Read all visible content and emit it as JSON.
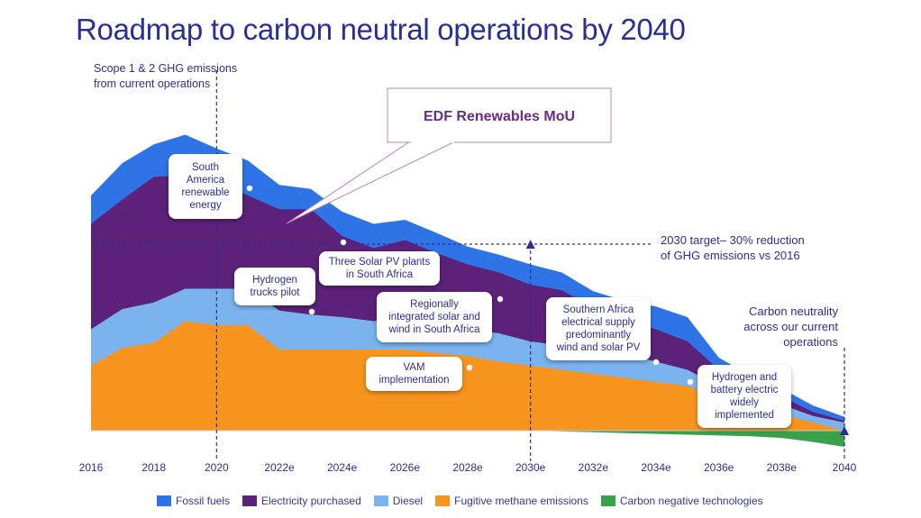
{
  "title": "Roadmap to carbon neutral operations by 2040",
  "chart_data": {
    "type": "area",
    "stacked": true,
    "ylabel": "Scope 1 & 2 GHG emissions\nfrom current operations",
    "x": [
      "2016",
      "2017",
      "2018",
      "2019",
      "2020",
      "2021",
      "2022",
      "2023",
      "2024",
      "2025",
      "2026",
      "2027",
      "2028",
      "2029",
      "2030",
      "2031",
      "2032",
      "2033",
      "2034",
      "2035",
      "2036",
      "2037",
      "2038",
      "2039",
      "2040"
    ],
    "tick_labels": [
      "2016",
      "2018",
      "2020",
      "2022e",
      "2024e",
      "2026e",
      "2028e",
      "2030e",
      "2032e",
      "2034e",
      "2036e",
      "2038e",
      "2040"
    ],
    "series": [
      {
        "name": "Fugitive methane emissions",
        "color": "#f7941d",
        "values": [
          80,
          102,
          108,
          135,
          130,
          130,
          100,
          100,
          100,
          100,
          100,
          96,
          92,
          85,
          80,
          75,
          70,
          65,
          60,
          55,
          40,
          30,
          20,
          10,
          0
        ]
      },
      {
        "name": "Diesel",
        "color": "#7ab3ee",
        "values": [
          45,
          48,
          50,
          40,
          45,
          45,
          48,
          43,
          40,
          35,
          40,
          38,
          33,
          35,
          30,
          30,
          27,
          30,
          25,
          20,
          15,
          13,
          12,
          8,
          10
        ]
      },
      {
        "name": "Electricity purchased",
        "color": "#5c2178",
        "values": [
          130,
          135,
          155,
          140,
          133,
          115,
          125,
          130,
          100,
          90,
          95,
          85,
          80,
          75,
          70,
          68,
          55,
          40,
          40,
          35,
          20,
          13,
          10,
          5,
          2
        ]
      },
      {
        "name": "Fossil fuels",
        "color": "#2f74e6",
        "values": [
          35,
          45,
          40,
          50,
          40,
          43,
          30,
          25,
          30,
          30,
          25,
          25,
          22,
          22,
          25,
          22,
          20,
          25,
          28,
          30,
          15,
          12,
          10,
          8,
          5
        ]
      },
      {
        "name": "Carbon negative technologies",
        "color": "#3aa14a",
        "values": [
          0,
          0,
          0,
          0,
          0,
          0,
          0,
          0,
          0,
          0,
          0,
          0,
          0,
          0,
          0,
          -1,
          -2,
          -3,
          -4,
          -5,
          -6,
          -7,
          -9,
          -14,
          -20
        ]
      }
    ],
    "annotations": {
      "mou": "EDF Renewables MoU",
      "target_2030": "2030 target– 30% reduction\nof GHG emissions vs 2016",
      "neutral_2040": "Carbon neutrality\nacross our current\noperations"
    },
    "milestones": [
      {
        "text": "South\nAmerica\nrenewable\nenergy",
        "year": 2021
      },
      {
        "text": "Hydrogen\ntrucks pilot",
        "year": 2023
      },
      {
        "text": "Three Solar PV plants\nin South Africa",
        "year": 2024
      },
      {
        "text": "Regionally\nintegrated solar and\nwind in South Africa",
        "year": 2027
      },
      {
        "text": "VAM\nimplementation",
        "year": 2027
      },
      {
        "text": "Southern Africa\nelectrical supply\npredominantly\nwind and solar PV",
        "year": 2034
      },
      {
        "text": "Hydrogen and\nbattery electric\nwidely\nimplemented",
        "year": 2035
      }
    ],
    "legend": {
      "placement": "bottom",
      "entries": [
        "Fossil fuels",
        "Electricity purchased",
        "Diesel",
        "Fugitive methane emissions",
        "Carbon negative technologies"
      ]
    }
  },
  "colors": {
    "title": "#2b2f8f",
    "text": "#2b2f8f",
    "marker_line": "#2b2f8f"
  }
}
